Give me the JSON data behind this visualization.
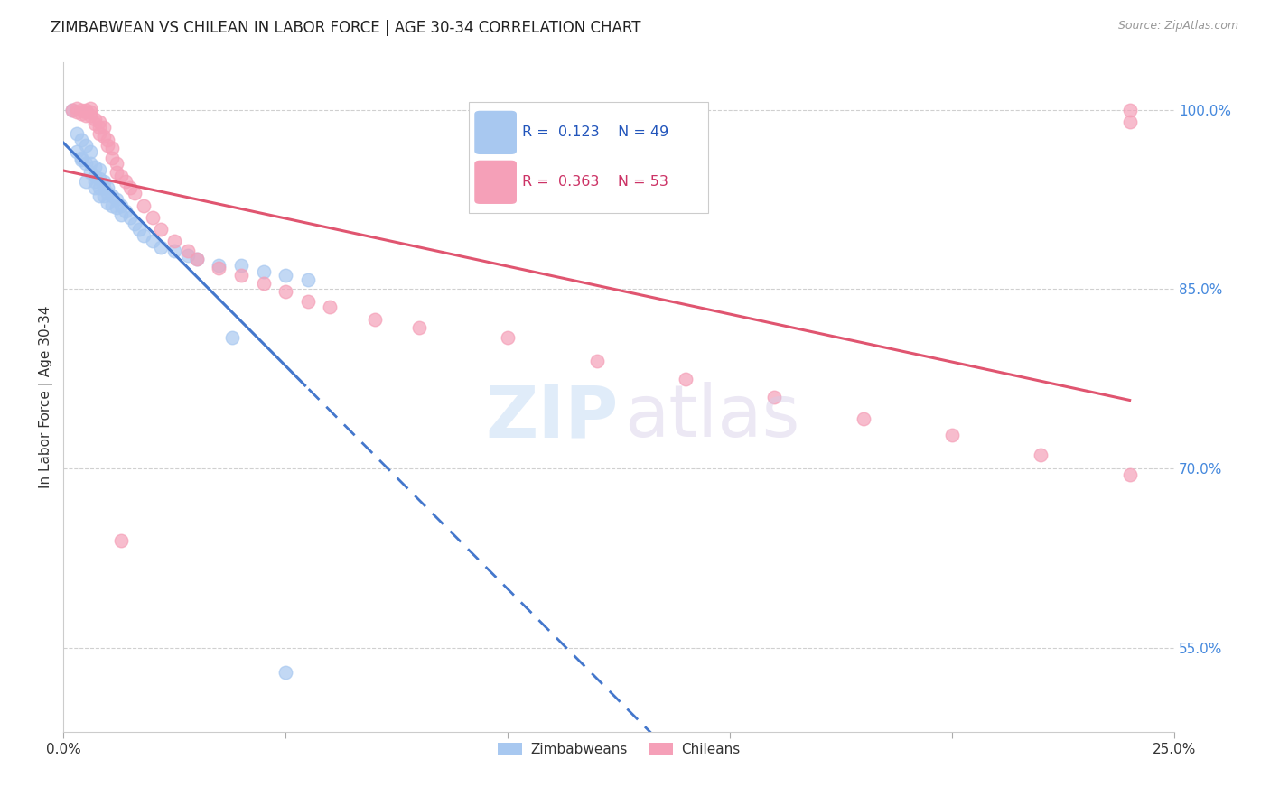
{
  "title": "ZIMBABWEAN VS CHILEAN IN LABOR FORCE | AGE 30-34 CORRELATION CHART",
  "source": "Source: ZipAtlas.com",
  "ylabel": "In Labor Force | Age 30-34",
  "xlim": [
    0.0,
    0.25
  ],
  "ylim": [
    0.48,
    1.04
  ],
  "xticks": [
    0.0,
    0.05,
    0.1,
    0.15,
    0.2,
    0.25
  ],
  "xticklabels": [
    "0.0%",
    "",
    "",
    "",
    "",
    "25.0%"
  ],
  "yticks": [
    0.55,
    0.7,
    0.85,
    1.0
  ],
  "yticklabels": [
    "55.0%",
    "70.0%",
    "85.0%",
    "100.0%"
  ],
  "legend_blue_r": "0.123",
  "legend_blue_n": "49",
  "legend_pink_r": "0.363",
  "legend_pink_n": "53",
  "blue_color": "#a8c8f0",
  "pink_color": "#f5a0b8",
  "blue_line_color": "#4477cc",
  "pink_line_color": "#e05570",
  "grid_color": "#d0d0d0",
  "blue_x": [
    0.002,
    0.003,
    0.003,
    0.004,
    0.004,
    0.004,
    0.005,
    0.005,
    0.005,
    0.006,
    0.006,
    0.006,
    0.007,
    0.007,
    0.007,
    0.007,
    0.008,
    0.008,
    0.008,
    0.008,
    0.009,
    0.009,
    0.009,
    0.01,
    0.01,
    0.01,
    0.011,
    0.011,
    0.012,
    0.012,
    0.013,
    0.013,
    0.014,
    0.015,
    0.016,
    0.017,
    0.018,
    0.02,
    0.022,
    0.025,
    0.028,
    0.03,
    0.035,
    0.04,
    0.045,
    0.05,
    0.055,
    0.038,
    0.05
  ],
  "blue_y": [
    1.0,
    0.98,
    0.965,
    0.975,
    0.96,
    0.958,
    0.97,
    0.955,
    0.94,
    0.965,
    0.955,
    0.948,
    0.952,
    0.945,
    0.94,
    0.935,
    0.95,
    0.942,
    0.935,
    0.928,
    0.94,
    0.935,
    0.928,
    0.935,
    0.93,
    0.922,
    0.928,
    0.92,
    0.925,
    0.918,
    0.92,
    0.912,
    0.915,
    0.91,
    0.905,
    0.9,
    0.895,
    0.89,
    0.885,
    0.882,
    0.878,
    0.875,
    0.87,
    0.87,
    0.865,
    0.862,
    0.858,
    0.81,
    0.53
  ],
  "pink_x": [
    0.002,
    0.003,
    0.003,
    0.004,
    0.004,
    0.005,
    0.005,
    0.005,
    0.006,
    0.006,
    0.006,
    0.007,
    0.007,
    0.008,
    0.008,
    0.008,
    0.009,
    0.009,
    0.01,
    0.01,
    0.011,
    0.011,
    0.012,
    0.012,
    0.013,
    0.014,
    0.015,
    0.016,
    0.018,
    0.02,
    0.022,
    0.025,
    0.028,
    0.03,
    0.035,
    0.04,
    0.045,
    0.05,
    0.055,
    0.06,
    0.07,
    0.08,
    0.1,
    0.12,
    0.14,
    0.16,
    0.18,
    0.2,
    0.22,
    0.24,
    0.013,
    0.24,
    0.24
  ],
  "pink_y": [
    1.0,
    1.001,
    0.998,
    1.0,
    0.997,
    1.0,
    0.998,
    0.995,
    1.001,
    0.998,
    0.995,
    0.992,
    0.988,
    0.99,
    0.985,
    0.98,
    0.985,
    0.978,
    0.975,
    0.97,
    0.968,
    0.96,
    0.955,
    0.948,
    0.945,
    0.94,
    0.935,
    0.93,
    0.92,
    0.91,
    0.9,
    0.89,
    0.882,
    0.875,
    0.868,
    0.862,
    0.855,
    0.848,
    0.84,
    0.835,
    0.825,
    0.818,
    0.81,
    0.79,
    0.775,
    0.76,
    0.742,
    0.728,
    0.712,
    0.695,
    0.64,
    1.0,
    0.99
  ]
}
